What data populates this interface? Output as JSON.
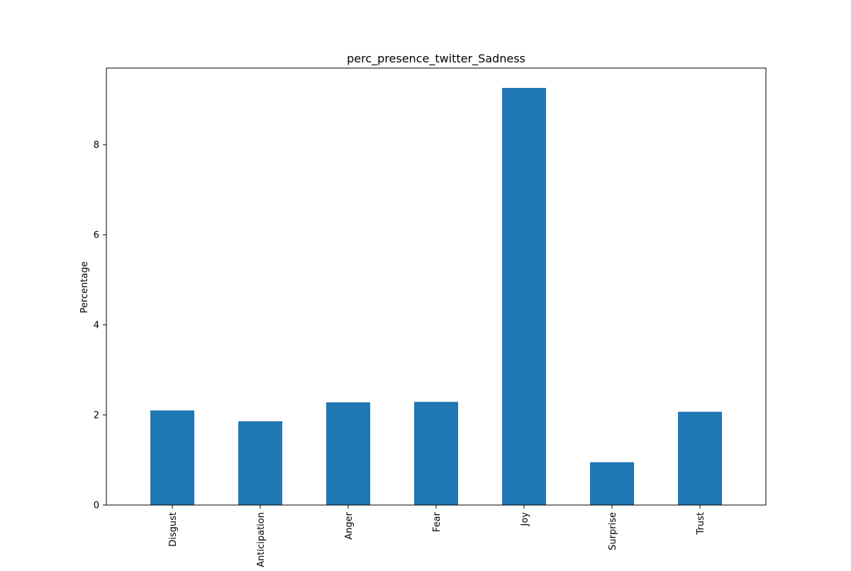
{
  "chart_data": {
    "type": "bar",
    "title": "perc_presence_twitter_Sadness",
    "xlabel": "",
    "ylabel": "Percentage",
    "categories": [
      "Disgust",
      "Anticipation",
      "Anger",
      "Fear",
      "Joy",
      "Surprise",
      "Trust"
    ],
    "values": [
      2.1,
      1.86,
      2.28,
      2.29,
      9.26,
      0.95,
      2.07
    ],
    "ylim": [
      0,
      9.7
    ],
    "yticks": [
      0,
      2,
      4,
      6,
      8
    ],
    "grid": false,
    "legend": "none",
    "bar_color": "#1f77b4"
  }
}
